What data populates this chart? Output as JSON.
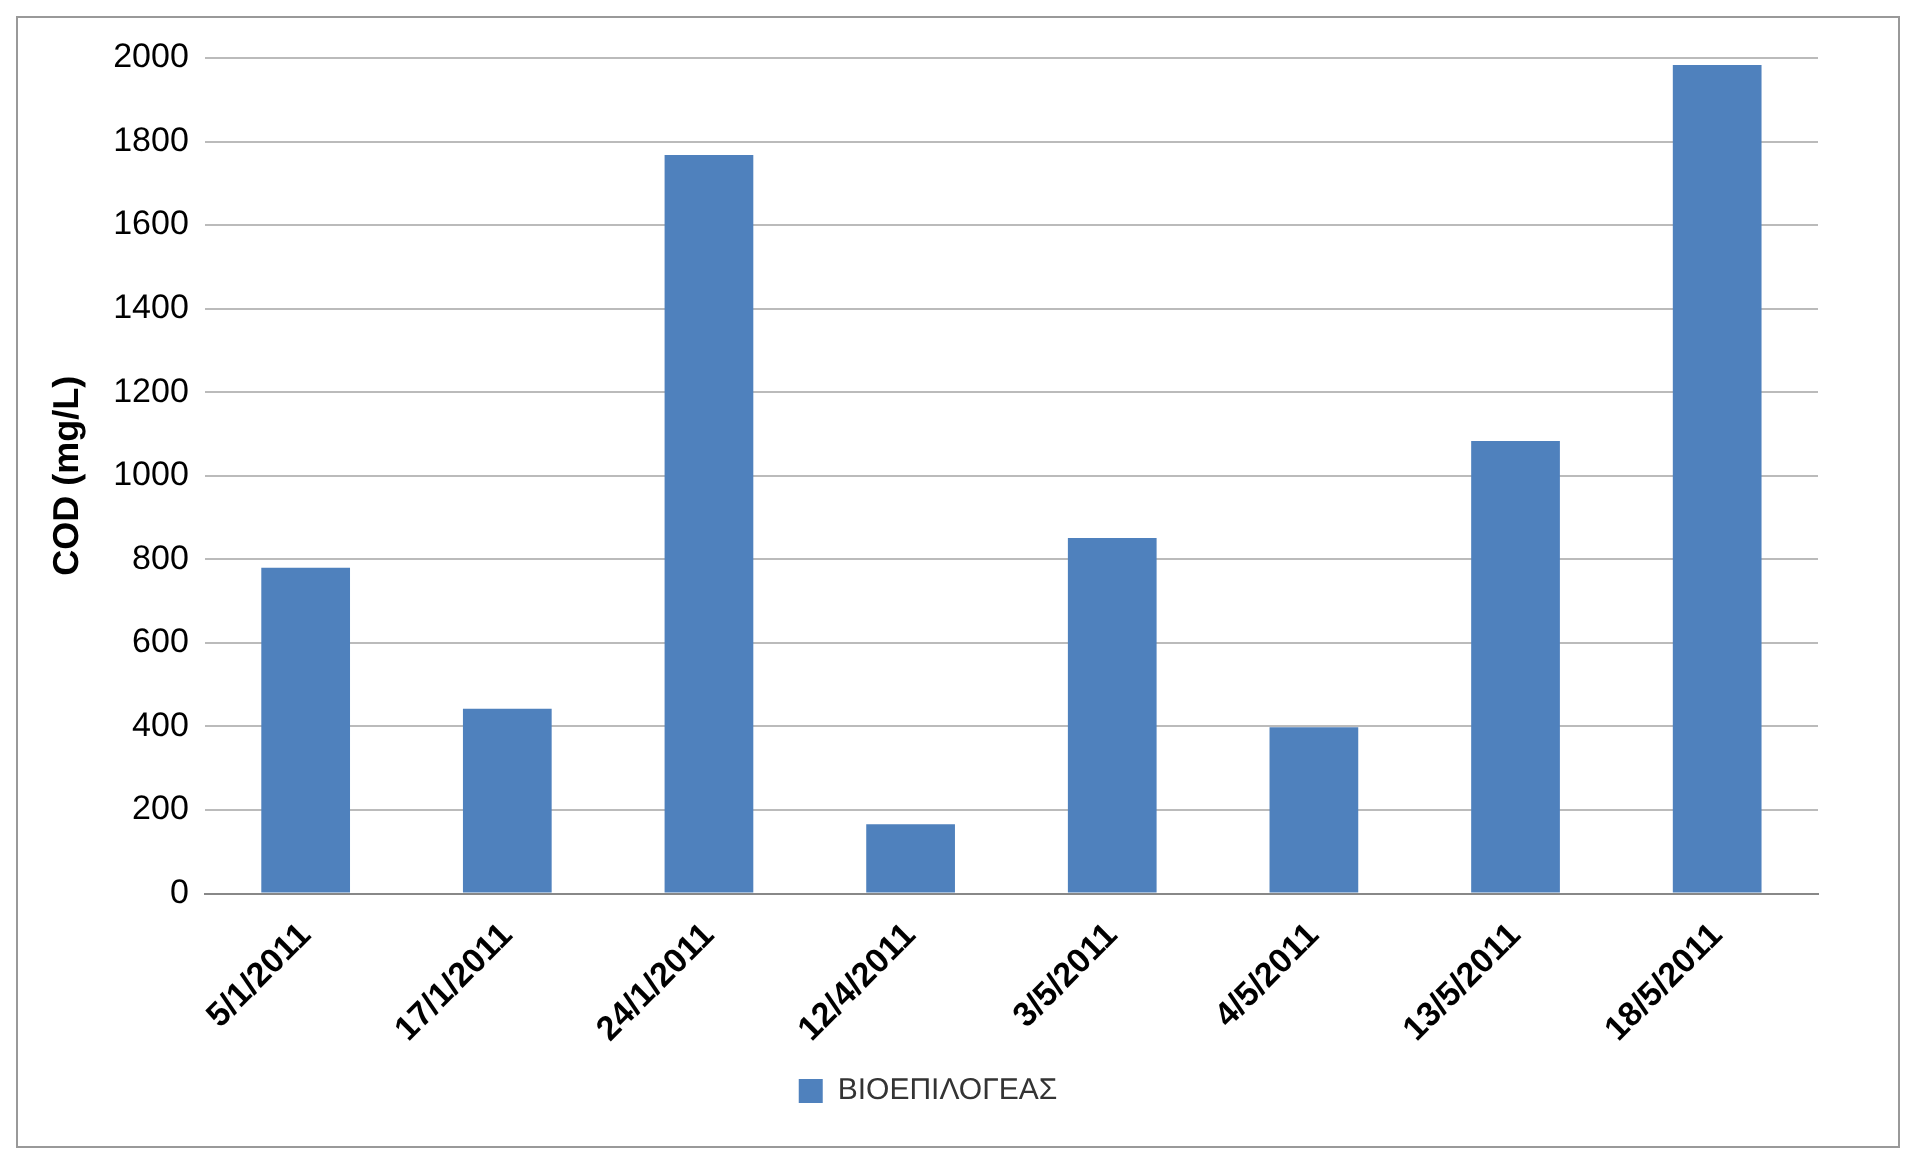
{
  "chart_data": {
    "type": "bar",
    "ylabel": "COD (mg/L)",
    "categories": [
      "5/1/2011",
      "17/1/2011",
      "24/1/2011",
      "12/4/2011",
      "3/5/2011",
      "4/5/2011",
      "13/5/2011",
      "18/5/2011"
    ],
    "series": [
      {
        "name": "ΒΙΟΕΠΙΛΟΓΕΑΣ",
        "color": "#4f81bd",
        "values": [
          780,
          442,
          1768,
          166,
          851,
          398,
          1083,
          1983
        ]
      }
    ],
    "ylim": [
      0,
      2000
    ],
    "yticks": [
      0,
      200,
      400,
      600,
      800,
      1000,
      1200,
      1400,
      1600,
      1800,
      2000
    ],
    "grid": "y",
    "legend": "bottom"
  }
}
